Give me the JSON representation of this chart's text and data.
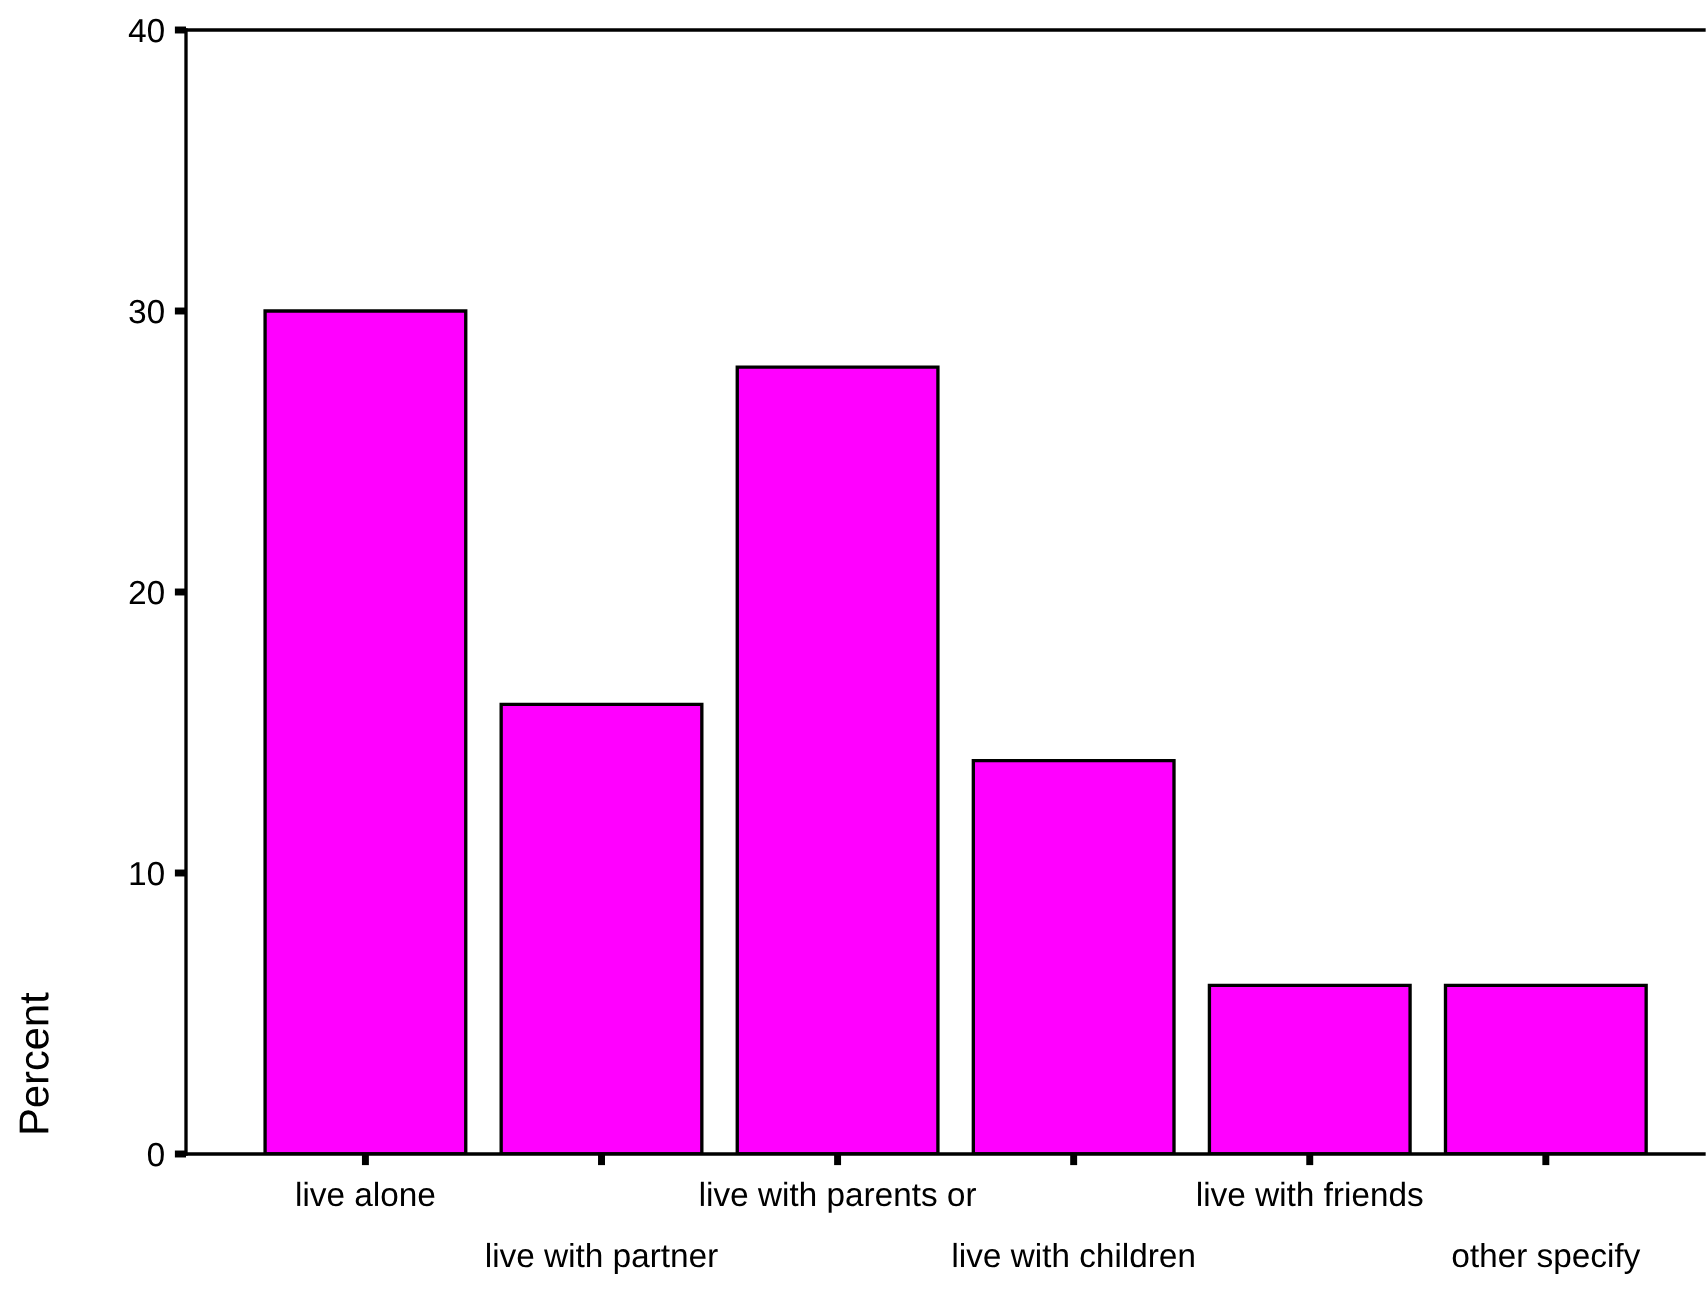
{
  "chart_data": {
    "type": "bar",
    "ylabel": "Percent",
    "categories": [
      "live alone",
      "live with partner",
      "live with parents or",
      "live with children",
      "live with friends",
      "other specify"
    ],
    "values": [
      30,
      16,
      28,
      14,
      6,
      6
    ],
    "color": "#ff00ff",
    "ylim": [
      0,
      40
    ],
    "yticks": [
      0,
      10,
      20,
      30,
      40
    ],
    "grid": false,
    "legend": false
  }
}
